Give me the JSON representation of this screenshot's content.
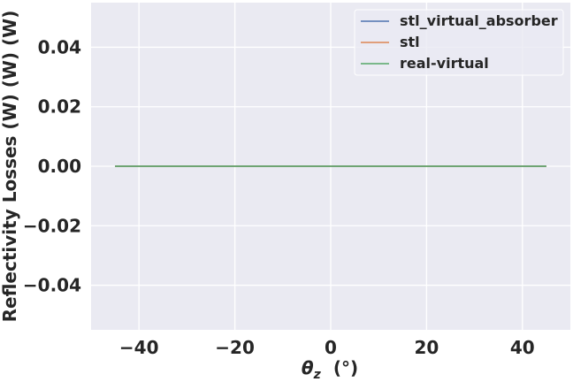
{
  "chart_data": {
    "type": "line",
    "title": "",
    "xlabel_symbol": "θ",
    "xlabel_subscript": "z",
    "xlabel_unit": "(°)",
    "ylabel": "Reflectivity Losses (W) (W) (W)",
    "xlim": [
      -50,
      50
    ],
    "ylim": [
      -0.055,
      0.055
    ],
    "x_ticks": [
      -40,
      -20,
      0,
      20,
      40
    ],
    "x_tick_labels": [
      "−40",
      "−20",
      "0",
      "20",
      "40"
    ],
    "y_ticks": [
      0.04,
      0.02,
      0.0,
      -0.02,
      -0.04
    ],
    "y_tick_labels": [
      "0.04",
      "0.02",
      "0.00",
      "−0.02",
      "−0.04"
    ],
    "grid": true,
    "legend_position": "top-right",
    "series": [
      {
        "name": "stl_virtual_absorber",
        "color": "#4C72B0",
        "x": [
          -45,
          45
        ],
        "y": [
          0,
          0
        ]
      },
      {
        "name": "stl",
        "color": "#DD8452",
        "x": [
          -45,
          45
        ],
        "y": [
          0,
          0
        ]
      },
      {
        "name": "real-virtual",
        "color": "#55A868",
        "x": [
          -45,
          45
        ],
        "y": [
          0,
          0
        ]
      }
    ]
  },
  "colors": {
    "plot_background": "#EAEAF2",
    "grid": "#FFFFFF",
    "text": "#262626"
  }
}
